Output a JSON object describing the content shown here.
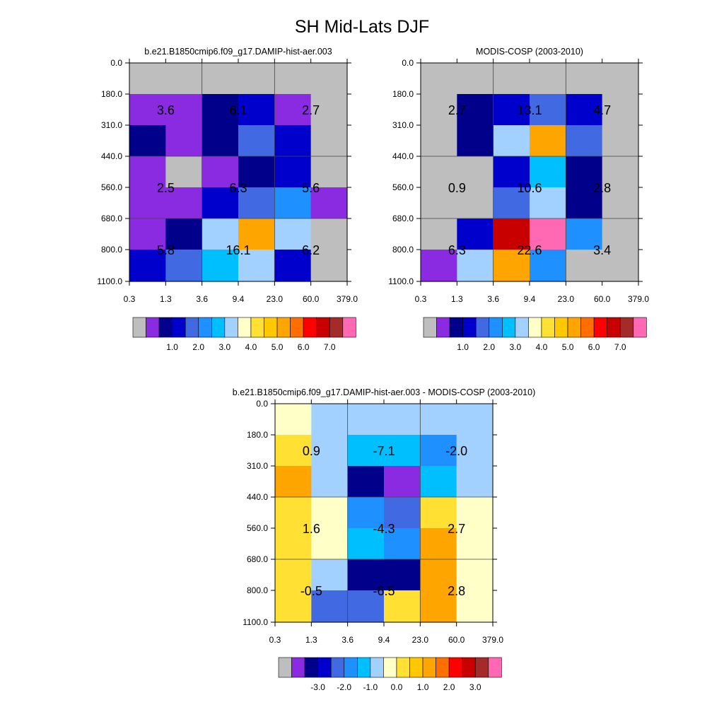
{
  "figure_title": "SH Mid-Lats DJF",
  "colors": {
    "missing": "#bebebe",
    "levels": [
      "#8a2be2",
      "#00008b",
      "#0000cd",
      "#4169e1",
      "#1e90ff",
      "#00bfff",
      "#a3d1ff",
      "#ffffc8",
      "#ffe033",
      "#ffc800",
      "#ffa500",
      "#ff6e00",
      "#ff0000",
      "#c80000",
      "#a52a2a",
      "#ff69b4"
    ]
  },
  "chart_data": [
    {
      "type": "heatmap",
      "title": "b.e21.B1850cmip6.f09_g17.DAMIP-hist-aer.003",
      "x_ticks": [
        "0.3",
        "1.3",
        "3.6",
        "9.4",
        "23.0",
        "60.0",
        "379.0"
      ],
      "y_ticks": [
        "0.0",
        "180.0",
        "310.0",
        "440.0",
        "560.0",
        "680.0",
        "800.0",
        "1100.0"
      ],
      "cell_color_index": [
        [
          -1,
          -1,
          -1,
          -1,
          -1,
          -1
        ],
        [
          0,
          0,
          1,
          2,
          0,
          -1
        ],
        [
          1,
          0,
          1,
          3,
          2,
          -1
        ],
        [
          0,
          -1,
          0,
          1,
          2,
          -1
        ],
        [
          0,
          0,
          2,
          3,
          4,
          0
        ],
        [
          0,
          1,
          6,
          10,
          6,
          -1
        ],
        [
          2,
          3,
          5,
          6,
          2,
          -1
        ]
      ],
      "group_values": [
        [
          "3.6",
          "6.1",
          "2.7"
        ],
        [
          "2.5",
          "6.3",
          "5.6"
        ],
        [
          "5.8",
          "16.1",
          "6.2"
        ]
      ],
      "colorbar": {
        "labels": [
          "1.0",
          "2.0",
          "3.0",
          "4.0",
          "5.0",
          "6.0",
          "7.0"
        ]
      }
    },
    {
      "type": "heatmap",
      "title": "MODIS-COSP (2003-2010)",
      "x_ticks": [
        "0.3",
        "1.3",
        "3.6",
        "9.4",
        "23.0",
        "60.0",
        "379.0"
      ],
      "y_ticks": [
        "0.0",
        "180.0",
        "310.0",
        "440.0",
        "560.0",
        "680.0",
        "800.0",
        "1100.0"
      ],
      "cell_color_index": [
        [
          -1,
          -1,
          -1,
          -1,
          -1,
          -1
        ],
        [
          -1,
          1,
          2,
          3,
          2,
          -1
        ],
        [
          -1,
          1,
          6,
          10,
          3,
          -1
        ],
        [
          -1,
          -1,
          2,
          5,
          1,
          -1
        ],
        [
          -1,
          -1,
          3,
          6,
          1,
          -1
        ],
        [
          -1,
          2,
          13,
          15,
          4,
          -1
        ],
        [
          0,
          6,
          10,
          4,
          -1,
          -1
        ]
      ],
      "group_values": [
        [
          "2.7",
          "13.1",
          "4.7"
        ],
        [
          "0.9",
          "10.6",
          "2.8"
        ],
        [
          "6.3",
          "22.6",
          "3.4"
        ]
      ],
      "colorbar": {
        "labels": [
          "1.0",
          "2.0",
          "3.0",
          "4.0",
          "5.0",
          "6.0",
          "7.0"
        ]
      }
    },
    {
      "type": "heatmap",
      "title": "b.e21.B1850cmip6.f09_g17.DAMIP-hist-aer.003 - MODIS-COSP (2003-2010)",
      "x_ticks": [
        "0.3",
        "1.3",
        "3.6",
        "9.4",
        "23.0",
        "60.0",
        "379.0"
      ],
      "y_ticks": [
        "0.0",
        "180.0",
        "310.0",
        "440.0",
        "560.0",
        "680.0",
        "800.0",
        "1100.0"
      ],
      "cell_color_index": [
        [
          7,
          6,
          6,
          6,
          6,
          6
        ],
        [
          8,
          6,
          5,
          5,
          4,
          6
        ],
        [
          10,
          6,
          1,
          0,
          5,
          6
        ],
        [
          8,
          7,
          4,
          3,
          8,
          7
        ],
        [
          8,
          7,
          5,
          4,
          10,
          7
        ],
        [
          8,
          6,
          1,
          1,
          10,
          7
        ],
        [
          8,
          3,
          3,
          8,
          10,
          7
        ]
      ],
      "group_values": [
        [
          "0.9",
          "-7.1",
          "-2.0"
        ],
        [
          "1.6",
          "-4.3",
          "2.7"
        ],
        [
          "-0.5",
          "-6.5",
          "2.8"
        ]
      ],
      "colorbar": {
        "labels": [
          "-3.0",
          "-2.0",
          "-1.0",
          "0.0",
          "1.0",
          "2.0",
          "3.0"
        ]
      }
    }
  ]
}
